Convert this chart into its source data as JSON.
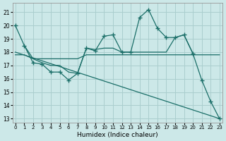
{
  "xlabel": "Humidex (Indice chaleur)",
  "bg_color": "#cce8e8",
  "grid_color": "#aacece",
  "line_color": "#1a6e68",
  "xlim": [
    -0.3,
    23.3
  ],
  "ylim": [
    12.7,
    21.7
  ],
  "yticks": [
    13,
    14,
    15,
    16,
    17,
    18,
    19,
    20,
    21
  ],
  "xticks": [
    0,
    1,
    2,
    3,
    4,
    5,
    6,
    7,
    8,
    9,
    10,
    11,
    12,
    13,
    14,
    15,
    16,
    17,
    18,
    19,
    20,
    21,
    22,
    23
  ],
  "line1_x": [
    0,
    1,
    2,
    3,
    4,
    5,
    6,
    7,
    8,
    9,
    10,
    11,
    12,
    13,
    14,
    15,
    16,
    17,
    18,
    19,
    20,
    21,
    22,
    23
  ],
  "line1_y": [
    20.0,
    18.5,
    17.2,
    17.1,
    16.5,
    16.5,
    15.9,
    16.4,
    18.3,
    18.1,
    19.2,
    19.3,
    18.0,
    18.0,
    20.6,
    21.2,
    19.8,
    19.1,
    19.1,
    19.3,
    17.9,
    15.9,
    14.3,
    13.0
  ],
  "line2_x": [
    1,
    2,
    3,
    4,
    5,
    6,
    7,
    8,
    9,
    10,
    11,
    12,
    13,
    14,
    15,
    16,
    17,
    18,
    19,
    20
  ],
  "line2_y": [
    18.5,
    17.5,
    17.2,
    17.0,
    17.0,
    16.5,
    16.4,
    18.3,
    18.2,
    18.3,
    18.3,
    18.0,
    18.0,
    18.0,
    18.0,
    18.0,
    18.0,
    19.1,
    19.3,
    17.9
  ],
  "line3_x": [
    0,
    1,
    2,
    3,
    4,
    5,
    6,
    7,
    8,
    9,
    10,
    11,
    12,
    13,
    14,
    15,
    16,
    17,
    18,
    19,
    20,
    21,
    22,
    23
  ],
  "line3_y": [
    17.8,
    17.8,
    17.5,
    17.5,
    17.5,
    17.5,
    17.5,
    17.5,
    17.8,
    17.8,
    17.8,
    17.8,
    17.8,
    17.8,
    17.8,
    17.8,
    17.8,
    17.8,
    17.8,
    17.8,
    17.8,
    17.8,
    17.8,
    17.8
  ],
  "line4_x": [
    0,
    23
  ],
  "line4_y": [
    18.0,
    13.0
  ]
}
